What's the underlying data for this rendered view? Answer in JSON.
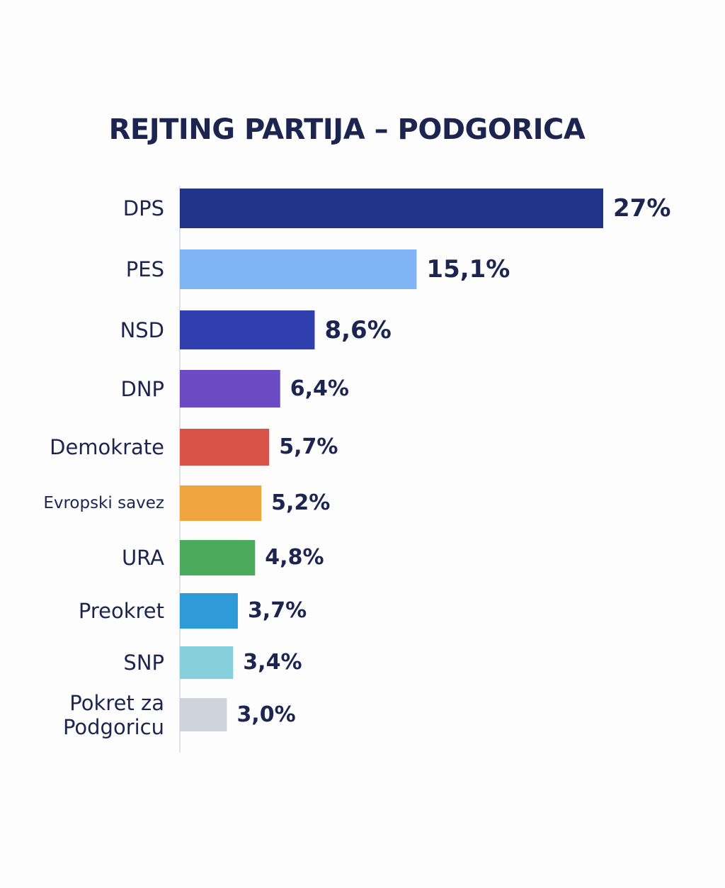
{
  "chart_data": {
    "type": "bar",
    "orientation": "horizontal",
    "title": "REJTING PARTIJA – PODGORICA",
    "categories": [
      "DPS",
      "PES",
      "NSD",
      "DNP",
      "Demokrate",
      "Evropski savez",
      "URA",
      "Preokret",
      "SNP",
      "Pokret za Podgoricu"
    ],
    "values": [
      27,
      15.1,
      8.6,
      6.4,
      5.7,
      5.2,
      4.8,
      3.7,
      3.4,
      3.0
    ],
    "value_labels": [
      "27%",
      "15,1%",
      "8,6%",
      "6,4%",
      "5,7%",
      "5,2%",
      "4,8%",
      "3,7%",
      "3,4%",
      "3,0%"
    ],
    "colors": [
      "#22338a",
      "#80b5f5",
      "#2f3fae",
      "#6a4bc4",
      "#d9534a",
      "#f0a53e",
      "#4caa5c",
      "#2e9ad8",
      "#86d0dc",
      "#cfd3dc"
    ]
  }
}
